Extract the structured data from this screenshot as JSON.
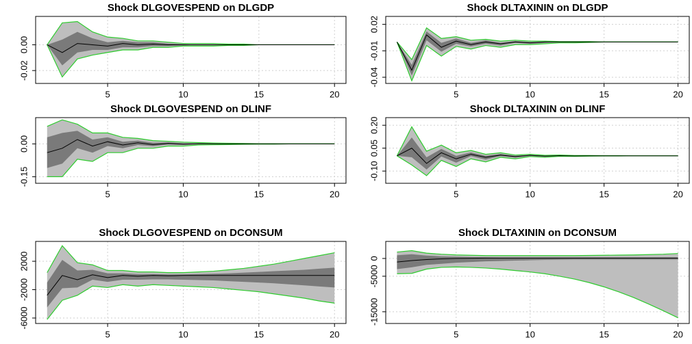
{
  "chart_data": [
    {
      "type": "line",
      "title": "Shock DLGOVESPEND on DLGDP",
      "x": [
        1,
        2,
        3,
        4,
        5,
        6,
        7,
        8,
        9,
        10,
        11,
        12,
        13,
        14,
        15,
        16,
        17,
        18,
        19,
        20
      ],
      "values": [
        0,
        -0.006,
        0.001,
        0,
        -0.001,
        0.001,
        0,
        0.0005,
        0,
        0,
        0,
        0,
        0,
        0,
        0,
        0,
        0,
        0,
        0,
        0
      ],
      "bands": [
        {
          "upper": [
            0,
            0.017,
            0.018,
            0.01,
            0.006,
            0.005,
            0.003,
            0.003,
            0.002,
            0.001,
            0.001,
            0.001,
            0.0005,
            0.0005,
            0,
            0,
            0,
            0,
            0,
            0
          ],
          "lower": [
            0,
            -0.025,
            -0.011,
            -0.008,
            -0.006,
            -0.004,
            -0.004,
            -0.002,
            -0.002,
            -0.001,
            -0.001,
            -0.001,
            -0.0005,
            -0.0005,
            0,
            0,
            0,
            0,
            0,
            0
          ],
          "color": "#bebebe"
        },
        {
          "upper": [
            0,
            0.004,
            0.01,
            0.005,
            0.002,
            0.003,
            0.002,
            0.002,
            0.001,
            0.0005,
            0,
            0,
            0,
            0,
            0,
            0,
            0,
            0,
            0,
            0
          ],
          "lower": [
            0,
            -0.016,
            -0.006,
            -0.004,
            -0.004,
            -0.002,
            -0.002,
            -0.001,
            -0.001,
            -0.0005,
            0,
            0,
            0,
            0,
            0,
            0,
            0,
            0,
            0,
            0
          ],
          "color": "#7a7a7a"
        }
      ],
      "color": "#000000",
      "band_edge_color": "#2ecc2e",
      "xlim": [
        0.24,
        20.76
      ],
      "xticks": [
        5,
        10,
        15,
        20
      ],
      "ylim": [
        -0.03,
        0.022
      ],
      "yticks": [
        {
          "value": 0,
          "label": "0.00"
        },
        -0.02
      ],
      "grid": true
    },
    {
      "type": "line",
      "title": "Shock DLTAXININ on DLGDP",
      "x": [
        1,
        2,
        3,
        4,
        5,
        6,
        7,
        8,
        9,
        10,
        11,
        12,
        13,
        14,
        15,
        16,
        17,
        18,
        19,
        20
      ],
      "values": [
        0,
        -0.032,
        0.008,
        -0.006,
        0.001,
        -0.003,
        0,
        -0.002,
        0,
        -0.001,
        0,
        0,
        0,
        0,
        0,
        0,
        0,
        0,
        0,
        0
      ],
      "bands": [
        {
          "upper": [
            0,
            -0.02,
            0.016,
            0.004,
            0.006,
            0.002,
            0.003,
            0.001,
            0.002,
            0.001,
            0.001,
            0.0005,
            0.0005,
            0.0005,
            0,
            0,
            0,
            0,
            0,
            0
          ],
          "lower": [
            0,
            -0.044,
            -0.004,
            -0.016,
            -0.005,
            -0.008,
            -0.004,
            -0.006,
            -0.003,
            -0.003,
            -0.002,
            -0.001,
            -0.001,
            -0.0005,
            0,
            0,
            0,
            0,
            0,
            0
          ],
          "color": "#bebebe"
        },
        {
          "upper": [
            0,
            -0.026,
            0.012,
            -0.001,
            0.004,
            -0.001,
            0.002,
            -0.001,
            0.001,
            0,
            0.0005,
            0,
            0,
            0,
            0,
            0,
            0,
            0,
            0,
            0
          ],
          "lower": [
            0,
            -0.038,
            0.002,
            -0.011,
            -0.002,
            -0.005,
            -0.002,
            -0.004,
            -0.001,
            -0.002,
            -0.001,
            0,
            0,
            0,
            0,
            0,
            0,
            0,
            0,
            0
          ],
          "color": "#7a7a7a"
        }
      ],
      "color": "#000000",
      "band_edge_color": "#2ecc2e",
      "xlim": [
        0.24,
        20.76
      ],
      "xticks": [
        5,
        10,
        15,
        20
      ],
      "ylim": [
        -0.047,
        0.029
      ],
      "yticks": [
        0.02,
        -0.01,
        -0.04
      ],
      "grid": true
    },
    {
      "type": "line",
      "title": "Shock DLGOVESPEND on DLINF",
      "x": [
        1,
        2,
        3,
        4,
        5,
        6,
        7,
        8,
        9,
        10,
        11,
        12,
        13,
        14,
        15,
        16,
        17,
        18,
        19,
        20
      ],
      "values": [
        -0.04,
        -0.02,
        0.02,
        -0.01,
        0.01,
        -0.005,
        0.005,
        -0.003,
        0.002,
        -0.001,
        0.001,
        0,
        0,
        0,
        0,
        0,
        0,
        0,
        0,
        0
      ],
      "bands": [
        {
          "upper": [
            0.08,
            0.11,
            0.09,
            0.05,
            0.05,
            0.03,
            0.025,
            0.015,
            0.012,
            0.008,
            0.006,
            0.004,
            0.003,
            0.002,
            0.001,
            0.001,
            0,
            0,
            0,
            0
          ],
          "lower": [
            -0.15,
            -0.15,
            -0.07,
            -0.08,
            -0.04,
            -0.04,
            -0.02,
            -0.02,
            -0.01,
            -0.01,
            -0.005,
            -0.004,
            -0.003,
            -0.002,
            -0.001,
            -0.001,
            0,
            0,
            0,
            0
          ],
          "color": "#bebebe"
        },
        {
          "upper": [
            0.03,
            0.05,
            0.06,
            0.02,
            0.03,
            0.01,
            0.015,
            0.005,
            0.007,
            0.003,
            0.003,
            0.002,
            0.001,
            0.001,
            0,
            0,
            0,
            0,
            0,
            0
          ],
          "lower": [
            -0.11,
            -0.09,
            -0.02,
            -0.04,
            -0.01,
            -0.02,
            -0.005,
            -0.01,
            -0.003,
            -0.005,
            -0.002,
            -0.002,
            -0.001,
            -0.001,
            0,
            0,
            0,
            0,
            0,
            0
          ],
          "color": "#7a7a7a"
        }
      ],
      "color": "#000000",
      "band_edge_color": "#2ecc2e",
      "xlim": [
        0.24,
        20.76
      ],
      "xticks": [
        5,
        10,
        15,
        20
      ],
      "ylim": [
        -0.18,
        0.12
      ],
      "yticks": [
        {
          "value": 0,
          "label": "0.00"
        },
        -0.15
      ],
      "grid": true
    },
    {
      "type": "line",
      "title": "Shock DLTAXININ on DLINF",
      "x": [
        1,
        2,
        3,
        4,
        5,
        6,
        7,
        8,
        9,
        10,
        11,
        12,
        13,
        14,
        15,
        16,
        17,
        18,
        19,
        20
      ],
      "values": [
        0,
        0.05,
        -0.05,
        0.02,
        -0.02,
        0.01,
        -0.01,
        0.005,
        -0.005,
        0.003,
        -0.002,
        0.001,
        -0.001,
        0,
        0,
        0,
        0,
        0,
        0,
        0
      ],
      "bands": [
        {
          "upper": [
            0,
            0.19,
            0.03,
            0.07,
            0.02,
            0.035,
            0.01,
            0.02,
            0.005,
            0.01,
            0.003,
            0.005,
            0.002,
            0.002,
            0.001,
            0.001,
            0,
            0,
            0,
            0
          ],
          "lower": [
            0,
            -0.06,
            -0.13,
            -0.03,
            -0.07,
            -0.02,
            -0.04,
            -0.01,
            -0.02,
            -0.005,
            -0.01,
            -0.003,
            -0.004,
            -0.002,
            -0.001,
            -0.001,
            0,
            0,
            0,
            0
          ],
          "color": "#bebebe"
        },
        {
          "upper": [
            0,
            0.12,
            -0.01,
            0.045,
            0,
            0.022,
            0,
            0.012,
            0,
            0.006,
            0,
            0.003,
            0,
            0.001,
            0,
            0,
            0,
            0,
            0,
            0
          ],
          "lower": [
            0,
            -0.01,
            -0.09,
            -0.005,
            -0.045,
            -0.002,
            -0.025,
            -0.002,
            -0.012,
            0,
            -0.006,
            0,
            -0.002,
            0,
            0,
            0,
            0,
            0,
            0,
            0
          ],
          "color": "#7a7a7a"
        }
      ],
      "color": "#000000",
      "band_edge_color": "#2ecc2e",
      "xlim": [
        0.24,
        20.76
      ],
      "xticks": [
        5,
        10,
        15,
        20
      ],
      "ylim": [
        -0.18,
        0.25
      ],
      "yticks": [
        {
          "value": 0.2,
          "label": "0.20"
        },
        0.05,
        {
          "value": -0.1,
          "label": "-0.10"
        }
      ],
      "grid": true
    },
    {
      "type": "line",
      "title": "Shock DLGOVESPEND on DCONSUM",
      "x": [
        1,
        2,
        3,
        4,
        5,
        6,
        7,
        8,
        9,
        10,
        11,
        12,
        13,
        14,
        15,
        16,
        17,
        18,
        19,
        20
      ],
      "values": [
        -2800,
        0,
        -600,
        100,
        -300,
        0,
        -100,
        0,
        -50,
        0,
        0,
        0,
        0,
        0,
        0,
        0,
        0,
        0,
        0,
        0
      ],
      "bands": [
        {
          "upper": [
            400,
            4200,
            1800,
            1500,
            700,
            700,
            500,
            500,
            400,
            400,
            500,
            600,
            800,
            1000,
            1300,
            1600,
            2000,
            2400,
            2800,
            3200
          ],
          "lower": [
            -6200,
            -3500,
            -2800,
            -1500,
            -1700,
            -1300,
            -1500,
            -1300,
            -1400,
            -1500,
            -1600,
            -1700,
            -1900,
            -2100,
            -2300,
            -2600,
            -2900,
            -3200,
            -3600,
            -3900
          ],
          "color": "#bebebe"
        },
        {
          "upper": [
            -1000,
            2200,
            700,
            800,
            300,
            300,
            200,
            200,
            150,
            150,
            200,
            250,
            300,
            400,
            500,
            600,
            700,
            800,
            950,
            1100
          ],
          "lower": [
            -4500,
            -1800,
            -1700,
            -600,
            -900,
            -600,
            -600,
            -550,
            -550,
            -600,
            -650,
            -700,
            -800,
            -900,
            -1000,
            -1100,
            -1250,
            -1400,
            -1550,
            -1700
          ],
          "color": "#7a7a7a"
        }
      ],
      "color": "#000000",
      "band_edge_color": "#2ecc2e",
      "xlim": [
        0.24,
        20.76
      ],
      "xticks": [
        5,
        10,
        15,
        20
      ],
      "ylim": [
        -6770,
        4800
      ],
      "yticks": [
        2000,
        -2000,
        -6000
      ],
      "grid": true
    },
    {
      "type": "line",
      "title": "Shock DLTAXININ on DCONSUM",
      "x": [
        1,
        2,
        3,
        4,
        5,
        6,
        7,
        8,
        9,
        10,
        11,
        12,
        13,
        14,
        15,
        16,
        17,
        18,
        19,
        20
      ],
      "values": [
        -1000,
        -600,
        -300,
        -100,
        0,
        50,
        100,
        100,
        100,
        100,
        100,
        100,
        100,
        100,
        100,
        100,
        100,
        100,
        100,
        100
      ],
      "bands": [
        {
          "upper": [
            1800,
            2200,
            1500,
            1200,
            1000,
            900,
            800,
            800,
            800,
            800,
            800,
            800,
            800,
            850,
            900,
            950,
            1000,
            1100,
            1200,
            1400
          ],
          "lower": [
            -4300,
            -4200,
            -3000,
            -2500,
            -2400,
            -2500,
            -2700,
            -3000,
            -3400,
            -3800,
            -4300,
            -5000,
            -5800,
            -6800,
            -8000,
            -9400,
            -11000,
            -12800,
            -14700,
            -16700
          ],
          "color": "#bebebe"
        },
        {
          "upper": [
            900,
            1200,
            800,
            600,
            500,
            400,
            350,
            300,
            300,
            300,
            300,
            300,
            300,
            300,
            300,
            300,
            300,
            300,
            300,
            300
          ],
          "lower": [
            -3000,
            -2500,
            -1800,
            -1500,
            -1200,
            -1000,
            -800,
            -700,
            -600,
            -500,
            -400,
            -350,
            -300,
            -300,
            -300,
            -300,
            -300,
            -300,
            -300,
            -300
          ],
          "color": "#7a7a7a"
        }
      ],
      "color": "#000000",
      "band_edge_color": "#2ecc2e",
      "xlim": [
        0.24,
        20.76
      ],
      "xticks": [
        5,
        10,
        15,
        20
      ],
      "ylim": [
        -18300,
        4800
      ],
      "yticks": [
        0,
        -5000,
        -15000
      ],
      "grid": true
    }
  ]
}
